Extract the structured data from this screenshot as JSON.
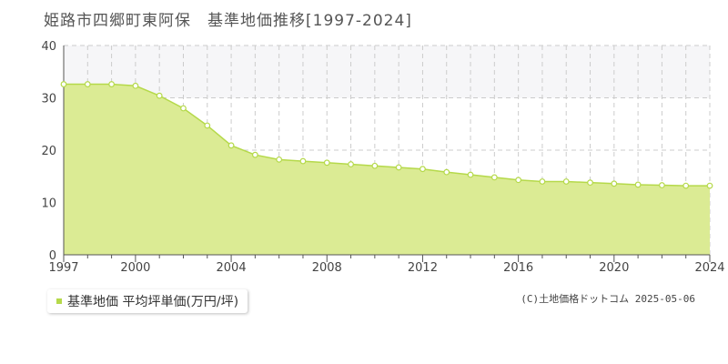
{
  "title": "姫路市四郷町東阿保　基準地価推移[1997-2024]",
  "legend_label": "基準地価 平均坪単価(万円/坪)",
  "copyright": "(C)土地価格ドットコム 2025-05-06",
  "colors": {
    "fill": "#dbeb94",
    "line": "#b5d94a",
    "band": "#f6f6f8",
    "grid": "#cccccc",
    "axis": "#555555",
    "marker_fill": "#ffffff"
  },
  "chart_data": {
    "type": "area",
    "title": "姫路市四郷町東阿保　基準地価推移[1997-2024]",
    "xlabel": "",
    "ylabel": "",
    "ylim": [
      0,
      40
    ],
    "yticks": [
      0,
      10,
      20,
      30,
      40
    ],
    "xlim": [
      1997,
      2024
    ],
    "xticks": [
      1997,
      2000,
      2004,
      2008,
      2012,
      2016,
      2020,
      2024
    ],
    "grid": true,
    "legend_position": "bottom-left",
    "series": [
      {
        "name": "基準地価 平均坪単価(万円/坪)",
        "x": [
          1997,
          1998,
          1999,
          2000,
          2001,
          2002,
          2003,
          2004,
          2005,
          2006,
          2007,
          2008,
          2009,
          2010,
          2011,
          2012,
          2013,
          2014,
          2015,
          2016,
          2017,
          2018,
          2019,
          2020,
          2021,
          2022,
          2023,
          2024
        ],
        "values": [
          32.6,
          32.6,
          32.6,
          32.3,
          30.4,
          28.0,
          24.7,
          20.9,
          19.1,
          18.2,
          17.9,
          17.6,
          17.3,
          17.0,
          16.7,
          16.4,
          15.8,
          15.3,
          14.8,
          14.3,
          14.0,
          14.0,
          13.8,
          13.6,
          13.4,
          13.3,
          13.2,
          13.2
        ]
      }
    ]
  }
}
